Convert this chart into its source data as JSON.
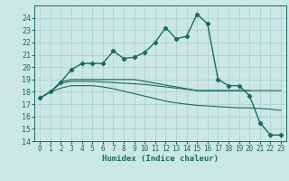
{
  "title": "",
  "xlabel": "Humidex (Indice chaleur)",
  "x_values": [
    0,
    1,
    2,
    3,
    4,
    5,
    6,
    7,
    8,
    9,
    10,
    11,
    12,
    13,
    14,
    15,
    16,
    17,
    18,
    19,
    20,
    21,
    22,
    23
  ],
  "main_line": [
    17.5,
    18.0,
    18.8,
    19.8,
    20.3,
    20.3,
    20.3,
    21.3,
    20.7,
    20.8,
    21.2,
    22.0,
    23.2,
    22.3,
    22.5,
    24.3,
    23.5,
    19.0,
    18.5,
    18.5,
    17.7,
    15.5,
    14.5,
    14.5
  ],
  "line2": [
    17.5,
    18.0,
    18.8,
    19.0,
    19.0,
    19.0,
    19.0,
    19.0,
    19.0,
    19.0,
    18.85,
    18.7,
    18.55,
    18.4,
    18.25,
    18.1,
    18.1,
    18.1,
    18.1,
    18.1,
    18.1,
    18.1,
    18.1,
    18.1
  ],
  "line3": [
    17.5,
    18.0,
    18.7,
    18.85,
    18.85,
    18.85,
    18.8,
    18.75,
    18.7,
    18.65,
    18.6,
    18.5,
    18.4,
    18.3,
    18.2,
    18.1,
    18.1,
    18.1,
    18.1,
    18.1,
    18.1,
    null,
    null,
    null
  ],
  "line4": [
    17.5,
    18.0,
    18.3,
    18.5,
    18.5,
    18.5,
    18.4,
    18.25,
    18.05,
    17.85,
    17.65,
    17.45,
    17.25,
    17.1,
    17.0,
    16.9,
    16.85,
    16.8,
    16.75,
    16.7,
    16.7,
    16.65,
    16.6,
    16.5
  ],
  "line_color": "#1a6b5e",
  "bg_color": "#cce8e4",
  "grid_color": "#aacccc",
  "ylim": [
    14,
    25
  ],
  "yticks": [
    14,
    15,
    16,
    17,
    18,
    19,
    20,
    21,
    22,
    23,
    24
  ],
  "xlim": [
    -0.5,
    23.5
  ],
  "tick_fontsize": 6.0,
  "xlabel_fontsize": 6.5
}
